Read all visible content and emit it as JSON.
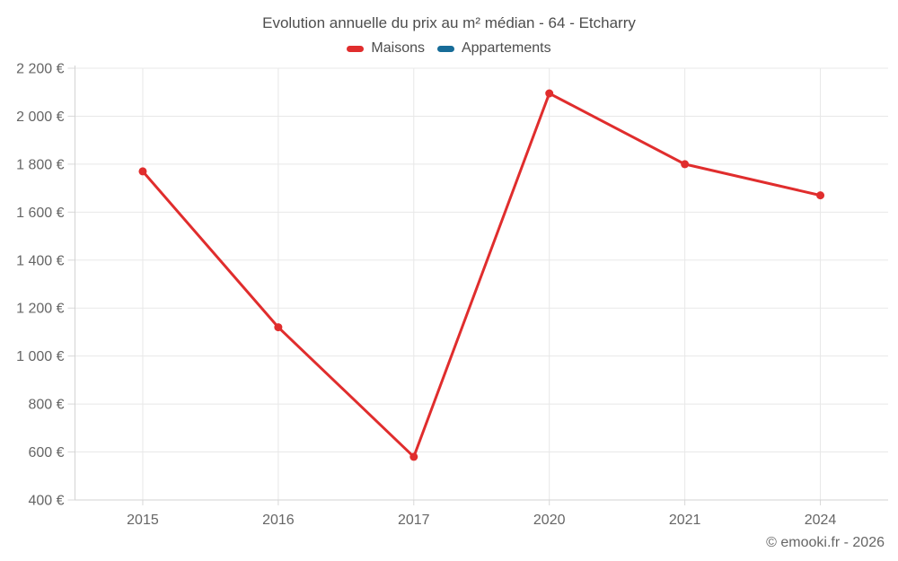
{
  "chart": {
    "title": "Evolution annuelle du prix au m² médian - 64 - Etcharry",
    "footer": "© emooki.fr - 2026"
  },
  "legend": {
    "items": [
      {
        "label": "Maisons",
        "color": "#e02d2d"
      },
      {
        "label": "Appartements",
        "color": "#176c98"
      }
    ]
  },
  "chart_data": {
    "type": "line",
    "title": "Evolution annuelle du prix au m² médian - 64 - Etcharry",
    "xlabel": "",
    "ylabel": "",
    "categories": [
      "2015",
      "2016",
      "2017",
      "2020",
      "2021",
      "2024"
    ],
    "series": [
      {
        "name": "Maisons",
        "color": "#e02d2d",
        "values": [
          1770,
          1120,
          580,
          2095,
          1800,
          1670
        ]
      },
      {
        "name": "Appartements",
        "color": "#176c98",
        "values": []
      }
    ],
    "ylim": [
      400,
      2200
    ],
    "yticks": [
      {
        "value": 400,
        "label": "400 €"
      },
      {
        "value": 600,
        "label": "600 €"
      },
      {
        "value": 800,
        "label": "800 €"
      },
      {
        "value": 1000,
        "label": "1 000 €"
      },
      {
        "value": 1200,
        "label": "1 200 €"
      },
      {
        "value": 1400,
        "label": "1 400 €"
      },
      {
        "value": 1600,
        "label": "1 600 €"
      },
      {
        "value": 1800,
        "label": "1 800 €"
      },
      {
        "value": 2000,
        "label": "2 000 €"
      },
      {
        "value": 2200,
        "label": "2 200 €"
      }
    ],
    "grid": true,
    "legend_position": "top",
    "currency": "€"
  },
  "style": {
    "grid_color": "#e8e8e8",
    "axis_color": "#d3d3d3",
    "tick_color": "#d8d8d8",
    "axis_label_color": "#666666"
  }
}
